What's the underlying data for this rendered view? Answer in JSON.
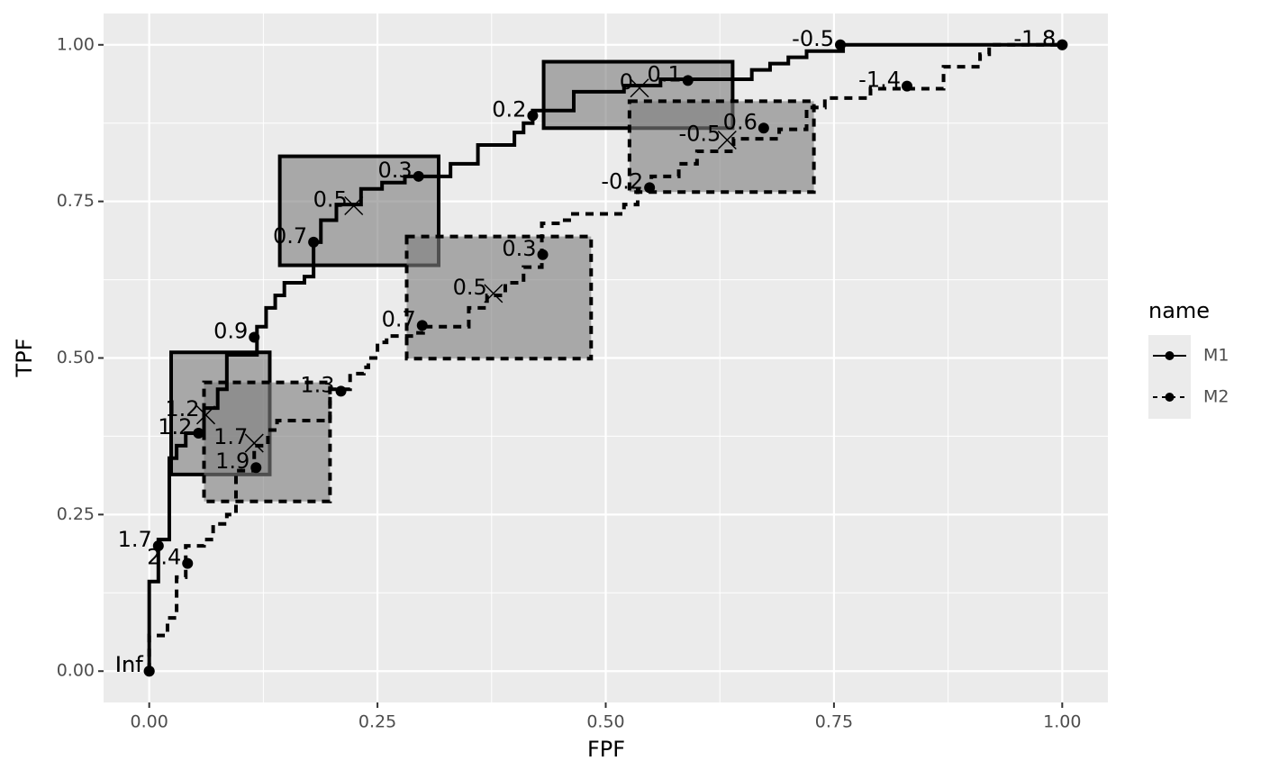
{
  "chart_data": {
    "type": "roc",
    "x_label": "FPF",
    "y_label": "TPF",
    "legend_title": "name",
    "xlim": [
      -0.05,
      1.05
    ],
    "ylim": [
      -0.05,
      1.05
    ],
    "xticks": [
      {
        "value": 0,
        "label": "0.00"
      },
      {
        "value": 0.25,
        "label": "0.25"
      },
      {
        "value": 0.5,
        "label": "0.50"
      },
      {
        "value": 0.75,
        "label": "0.75"
      },
      {
        "value": 1,
        "label": "1.00"
      }
    ],
    "yticks": [
      {
        "value": 0,
        "label": "0.00"
      },
      {
        "value": 0.25,
        "label": "0.25"
      },
      {
        "value": 0.5,
        "label": "0.50"
      },
      {
        "value": 0.75,
        "label": "0.75"
      },
      {
        "value": 1,
        "label": "1.00"
      }
    ],
    "x_minor_ticks": [
      0.125,
      0.375,
      0.625,
      0.875
    ],
    "y_minor_ticks": [
      0.125,
      0.375,
      0.625,
      0.875
    ],
    "grid": true,
    "legend_position": "right",
    "series": [
      {
        "name": "M1",
        "color": "#000000",
        "linetype": "solid",
        "fpf": [
          0,
          0,
          0.01,
          0.01,
          0.022,
          0.022,
          0.03,
          0.03,
          0.04,
          0.04,
          0.06,
          0.06,
          0.075,
          0.075,
          0.085,
          0.085,
          0.118,
          0.118,
          0.128,
          0.128,
          0.138,
          0.138,
          0.148,
          0.148,
          0.17,
          0.17,
          0.18,
          0.18,
          0.188,
          0.188,
          0.205,
          0.205,
          0.232,
          0.232,
          0.255,
          0.255,
          0.28,
          0.28,
          0.33,
          0.33,
          0.36,
          0.36,
          0.4,
          0.4,
          0.41,
          0.41,
          0.42,
          0.42,
          0.465,
          0.465,
          0.52,
          0.52,
          0.56,
          0.56,
          0.66,
          0.66,
          0.68,
          0.68,
          0.7,
          0.7,
          0.72,
          0.72,
          0.76,
          0.76,
          1
        ],
        "tpf": [
          0,
          0.143,
          0.143,
          0.21,
          0.21,
          0.34,
          0.34,
          0.36,
          0.36,
          0.38,
          0.38,
          0.42,
          0.42,
          0.45,
          0.45,
          0.505,
          0.505,
          0.55,
          0.55,
          0.58,
          0.58,
          0.6,
          0.6,
          0.62,
          0.62,
          0.63,
          0.63,
          0.685,
          0.685,
          0.72,
          0.72,
          0.745,
          0.745,
          0.77,
          0.77,
          0.78,
          0.78,
          0.79,
          0.79,
          0.81,
          0.81,
          0.84,
          0.84,
          0.86,
          0.86,
          0.875,
          0.875,
          0.895,
          0.895,
          0.925,
          0.925,
          0.935,
          0.935,
          0.945,
          0.945,
          0.96,
          0.96,
          0.97,
          0.97,
          0.98,
          0.98,
          0.99,
          0.99,
          1,
          1
        ],
        "points": {
          "fpf": [
            0,
            0.01,
            0.054,
            0.115,
            0.18,
            0.295,
            0.42,
            0.59,
            0.757,
            1
          ],
          "tpf": [
            0,
            0.2,
            0.38,
            0.533,
            0.685,
            0.79,
            0.887,
            0.943,
            1,
            1
          ],
          "labels": [
            "Inf",
            "1.7",
            "1.2",
            "0.9",
            "0.7",
            "0.3",
            "0.2",
            "0.1",
            "-0.5",
            "-1.8"
          ]
        },
        "regions": [
          {
            "xmin": 0.024,
            "xmax": 0.132,
            "ymin": 0.314,
            "ymax": 0.509,
            "fpf": 0.062,
            "tpf": 0.409,
            "label": "1.2"
          },
          {
            "xmin": 0.143,
            "xmax": 0.317,
            "ymin": 0.648,
            "ymax": 0.822,
            "fpf": 0.224,
            "tpf": 0.743,
            "label": "0.5"
          },
          {
            "xmin": 0.432,
            "xmax": 0.639,
            "ymin": 0.867,
            "ymax": 0.973,
            "fpf": 0.537,
            "tpf": 0.931,
            "label": "0"
          }
        ]
      },
      {
        "name": "M2",
        "color": "#000000",
        "linetype": "dashed",
        "fpf": [
          0,
          0,
          0.02,
          0.02,
          0.03,
          0.03,
          0.04,
          0.04,
          0.06,
          0.06,
          0.07,
          0.07,
          0.085,
          0.085,
          0.095,
          0.095,
          0.115,
          0.115,
          0.13,
          0.13,
          0.14,
          0.14,
          0.198,
          0.198,
          0.22,
          0.22,
          0.235,
          0.235,
          0.24,
          0.24,
          0.25,
          0.25,
          0.26,
          0.26,
          0.29,
          0.29,
          0.3,
          0.3,
          0.35,
          0.35,
          0.37,
          0.37,
          0.39,
          0.39,
          0.41,
          0.41,
          0.43,
          0.43,
          0.45,
          0.45,
          0.46,
          0.46,
          0.52,
          0.52,
          0.535,
          0.535,
          0.55,
          0.55,
          0.58,
          0.58,
          0.6,
          0.6,
          0.64,
          0.64,
          0.69,
          0.69,
          0.72,
          0.72,
          0.74,
          0.74,
          0.79,
          0.79,
          0.87,
          0.87,
          0.91,
          0.91,
          0.92,
          0.92,
          1
        ],
        "tpf": [
          0,
          0.057,
          0.057,
          0.085,
          0.085,
          0.15,
          0.15,
          0.2,
          0.2,
          0.21,
          0.21,
          0.235,
          0.235,
          0.25,
          0.25,
          0.32,
          0.32,
          0.36,
          0.36,
          0.385,
          0.385,
          0.4,
          0.4,
          0.45,
          0.45,
          0.475,
          0.475,
          0.485,
          0.485,
          0.5,
          0.5,
          0.525,
          0.525,
          0.535,
          0.535,
          0.54,
          0.54,
          0.55,
          0.55,
          0.58,
          0.58,
          0.6,
          0.6,
          0.62,
          0.62,
          0.645,
          0.645,
          0.715,
          0.715,
          0.72,
          0.72,
          0.73,
          0.73,
          0.745,
          0.745,
          0.77,
          0.77,
          0.79,
          0.79,
          0.81,
          0.81,
          0.83,
          0.83,
          0.85,
          0.85,
          0.865,
          0.865,
          0.9,
          0.9,
          0.915,
          0.915,
          0.93,
          0.93,
          0.965,
          0.965,
          0.985,
          0.985,
          1,
          1
        ],
        "points": {
          "fpf": [
            0,
            0.042,
            0.117,
            0.21,
            0.299,
            0.431,
            0.548,
            0.673,
            0.83,
            1
          ],
          "tpf": [
            0,
            0.172,
            0.325,
            0.447,
            0.552,
            0.665,
            0.772,
            0.867,
            0.934,
            1
          ],
          "labels": [
            "Inf",
            "2.4",
            "1.9",
            "1.3",
            "0.7",
            "0.3",
            "-0.2",
            "0.6",
            "-1.4",
            "-1.8"
          ]
        },
        "regions": [
          {
            "xmin": 0.06,
            "xmax": 0.198,
            "ymin": 0.271,
            "ymax": 0.461,
            "fpf": 0.115,
            "tpf": 0.364,
            "label": "1.7"
          },
          {
            "xmin": 0.282,
            "xmax": 0.484,
            "ymin": 0.499,
            "ymax": 0.694,
            "fpf": 0.377,
            "tpf": 0.603,
            "label": "0.5"
          },
          {
            "xmin": 0.526,
            "xmax": 0.728,
            "ymin": 0.765,
            "ymax": 0.91,
            "fpf": 0.633,
            "tpf": 0.848,
            "label": "-0.5"
          }
        ]
      }
    ]
  }
}
